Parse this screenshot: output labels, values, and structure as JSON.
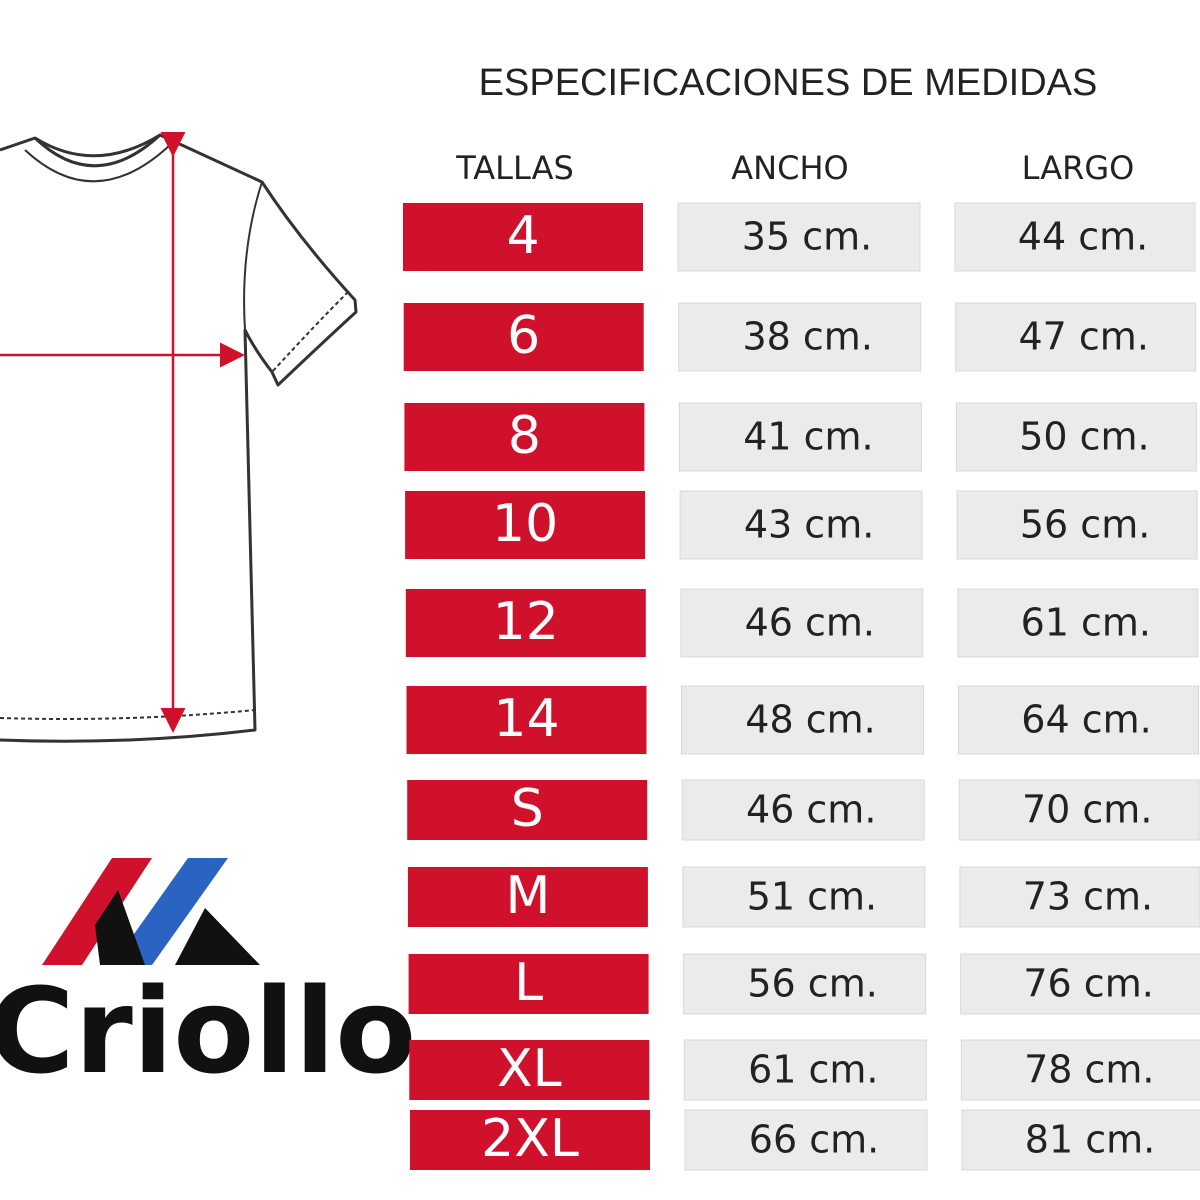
{
  "title": "ESPECIFICACIONES DE MEDIDAS",
  "brand": "Criollo",
  "table": {
    "headers": [
      "TALLAS",
      "ANCHO",
      "LARGO"
    ],
    "rows": [
      [
        "4",
        "35 cm.",
        "44 cm."
      ],
      [
        "6",
        "38 cm.",
        "47 cm."
      ],
      [
        "8",
        "41 cm.",
        "50 cm."
      ],
      [
        "10",
        "43 cm.",
        "56 cm."
      ],
      [
        "12",
        "46 cm.",
        "61 cm."
      ],
      [
        "14",
        "48 cm.",
        "64 cm."
      ],
      [
        "S",
        "46 cm.",
        "70 cm."
      ],
      [
        "M",
        "51 cm.",
        "73 cm."
      ],
      [
        "L",
        "56 cm.",
        "76 cm."
      ],
      [
        "XL",
        "61 cm.",
        "78 cm."
      ],
      [
        "2XL",
        "66 cm.",
        "81 cm."
      ]
    ]
  }
}
